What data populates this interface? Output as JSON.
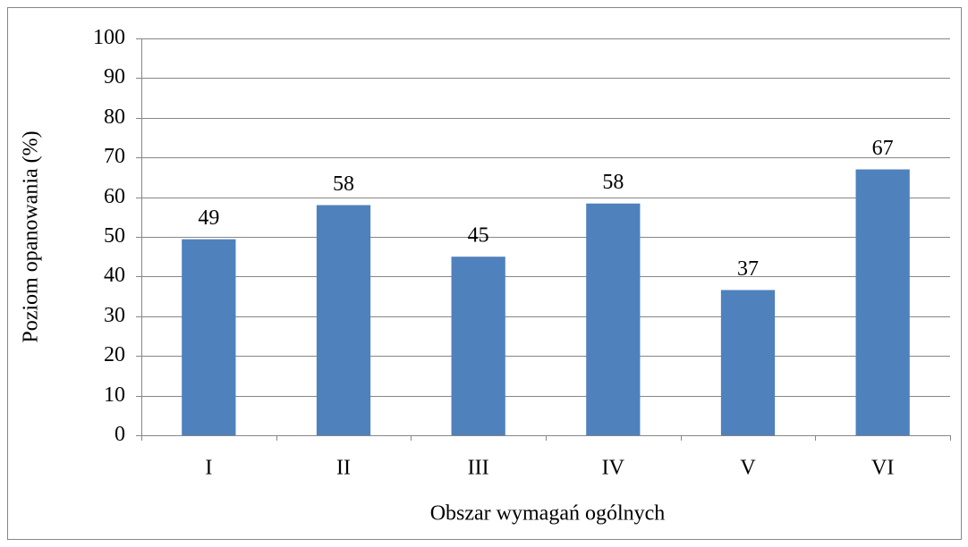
{
  "chart_data": {
    "type": "bar",
    "x_label": "Obszar wymagań ogólnych",
    "y_label": "Poziom opanowania (%)",
    "categories": [
      "I",
      "II",
      "III",
      "IV",
      "V",
      "VI"
    ],
    "values": [
      49.4,
      58,
      45,
      58.4,
      36.6,
      67
    ],
    "value_labels": [
      "49",
      "58",
      "45",
      "58",
      "37",
      "67"
    ],
    "color": "#4f81bd",
    "ylim": [
      0,
      100
    ],
    "yticks": [
      0,
      10,
      20,
      30,
      40,
      50,
      60,
      70,
      80,
      90,
      100
    ],
    "grid": true
  }
}
